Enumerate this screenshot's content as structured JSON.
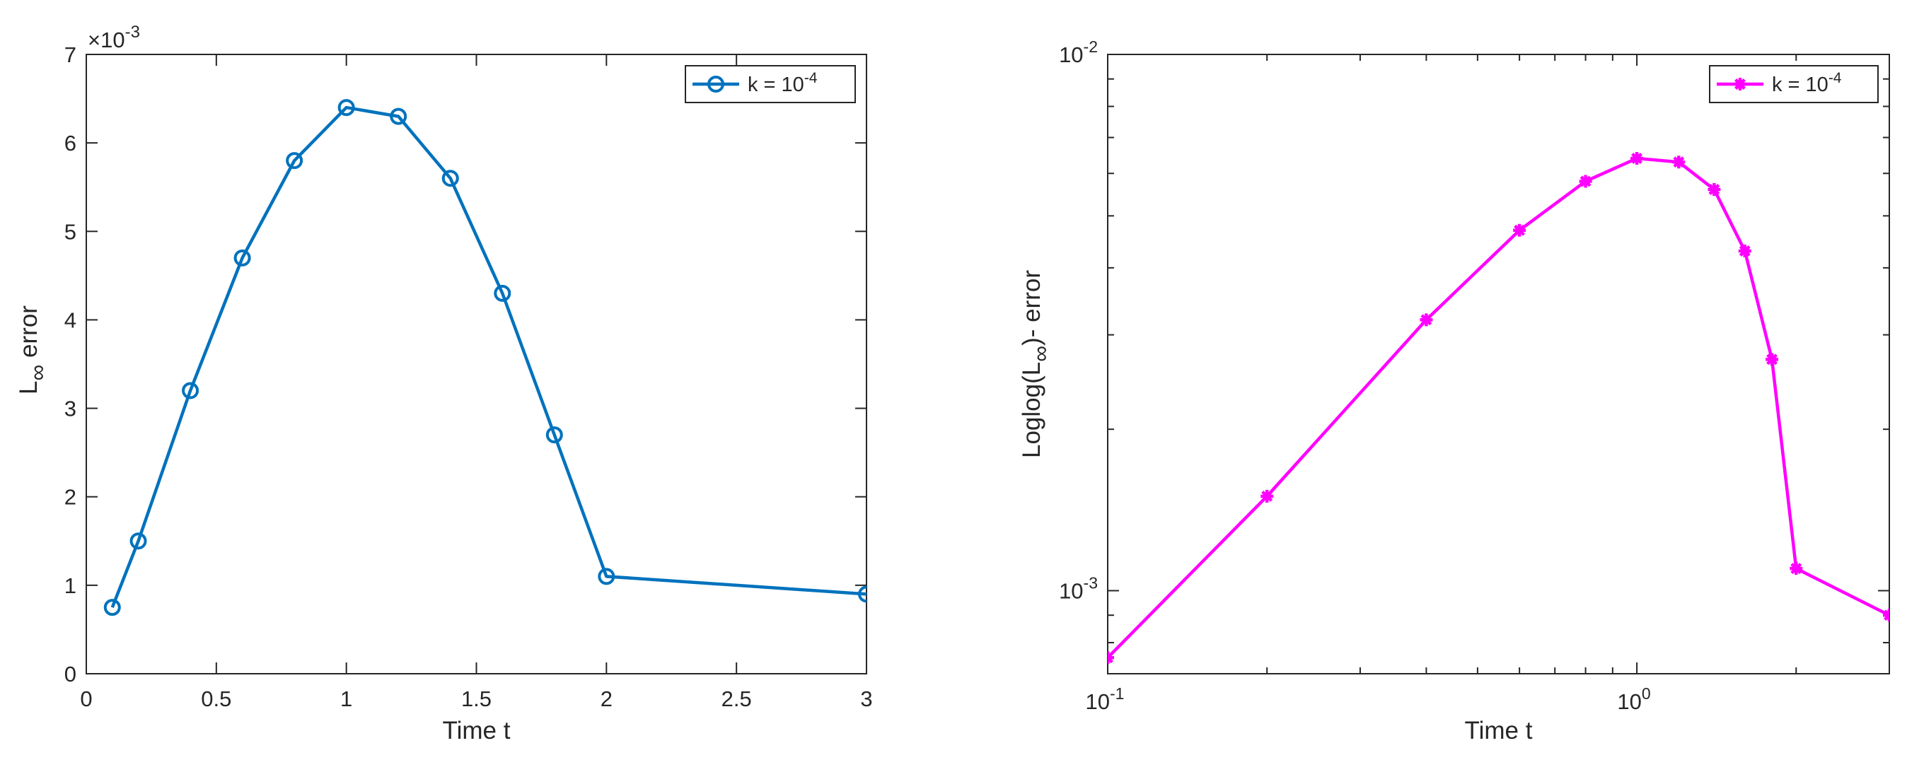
{
  "chart_data": [
    {
      "type": "line",
      "xlabel": "Time t",
      "ylabel": "L",
      "ylabel_subscript": "∞",
      "ylabel_suffix": " error",
      "xscale": "linear",
      "yscale": "linear",
      "xlim": [
        0,
        3
      ],
      "ylim": [
        0,
        0.007
      ],
      "x_ticks": [
        0,
        0.5,
        1,
        1.5,
        2,
        2.5,
        3
      ],
      "x_tick_labels": [
        "0",
        "0.5",
        "1",
        "1.5",
        "2",
        "2.5",
        "3"
      ],
      "y_ticks": [
        0,
        0.001,
        0.002,
        0.003,
        0.004,
        0.005,
        0.006,
        0.007
      ],
      "y_tick_labels": [
        "0",
        "1",
        "2",
        "3",
        "4",
        "5",
        "6",
        "7"
      ],
      "y_exponent": {
        "base": "×10",
        "power": "-3"
      },
      "grid": false,
      "legend_position": "top-right",
      "color": "#0072BD",
      "marker": "circle",
      "series": [
        {
          "name": "k = 10",
          "name_superscript": "-4",
          "x": [
            0.1,
            0.2,
            0.4,
            0.6,
            0.8,
            1.0,
            1.2,
            1.4,
            1.6,
            1.8,
            2.0,
            3.0
          ],
          "values": [
            0.00075,
            0.0015,
            0.0032,
            0.0047,
            0.0058,
            0.0064,
            0.0063,
            0.0056,
            0.0043,
            0.0027,
            0.0011,
            0.0009
          ]
        }
      ]
    },
    {
      "type": "line",
      "xlabel": "Time t",
      "ylabel": "Loglog(L",
      "ylabel_subscript": "∞",
      "ylabel_suffix": ")- error",
      "xscale": "log",
      "yscale": "log",
      "xlim": [
        0.1,
        3
      ],
      "ylim": [
        0.0007,
        0.01
      ],
      "x_tick_labels": [
        {
          "base": "10",
          "power": "-1"
        },
        {
          "base": "10",
          "power": "0"
        }
      ],
      "y_tick_labels": [
        {
          "base": "10",
          "power": "-3"
        },
        {
          "base": "10",
          "power": "-2"
        }
      ],
      "grid": false,
      "legend_position": "top-right",
      "color": "#FF00FF",
      "marker": "asterisk",
      "series": [
        {
          "name": "k = 10",
          "name_superscript": "-4",
          "x": [
            0.1,
            0.2,
            0.4,
            0.6,
            0.8,
            1.0,
            1.2,
            1.4,
            1.6,
            1.8,
            2.0,
            3.0
          ],
          "values": [
            0.00075,
            0.0015,
            0.0032,
            0.0047,
            0.0058,
            0.0064,
            0.0063,
            0.0056,
            0.0043,
            0.0027,
            0.0011,
            0.0009
          ]
        }
      ]
    }
  ]
}
